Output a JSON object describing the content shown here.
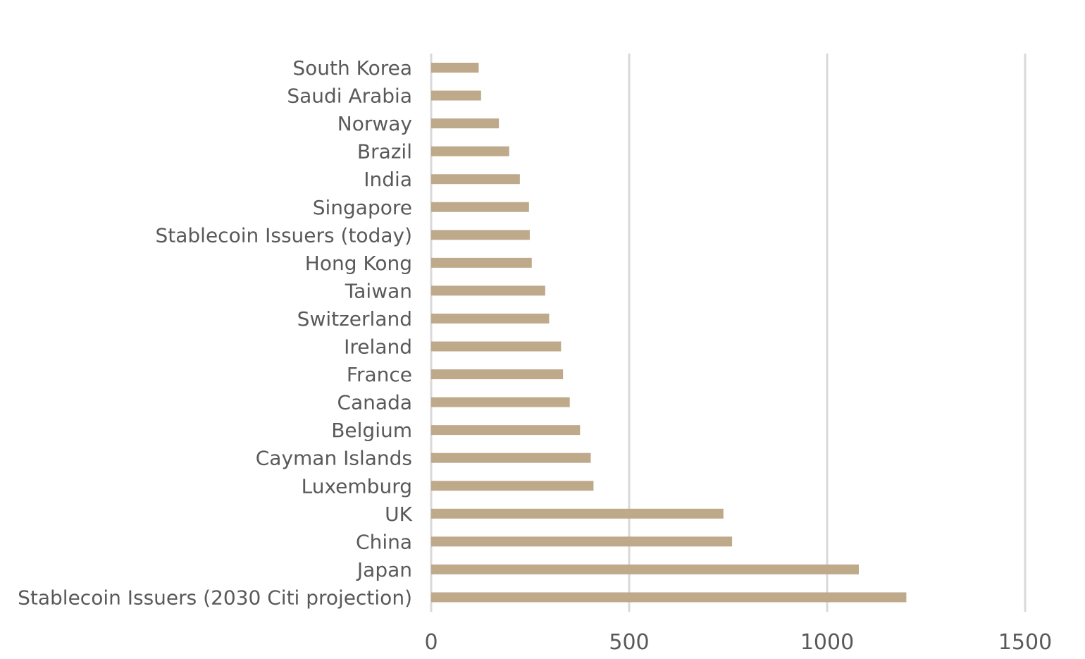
{
  "chart_data": {
    "type": "bar",
    "orientation": "horizontal",
    "title": "",
    "xlabel": "",
    "ylabel": "",
    "xlim": [
      0,
      1500
    ],
    "xticks": [
      0,
      500,
      1000,
      1500
    ],
    "xtick_labels": [
      "0",
      "500",
      "1000",
      "1500"
    ],
    "grid": true,
    "legend": "none",
    "bar_color": "#bfa98b",
    "categories": [
      "South Korea",
      "Saudi Arabia",
      "Norway",
      "Brazil",
      "India",
      "Singapore",
      "Stablecoin Issuers (today)",
      "Hong Kong",
      "Taiwan",
      "Switzerland",
      "Ireland",
      "France",
      "Canada",
      "Belgium",
      "Cayman Islands",
      "Luxemburg",
      "UK",
      "China",
      "Japan",
      "Stablecoin Issuers (2030 Citi projection)"
    ],
    "values": [
      120,
      126,
      171,
      197,
      224,
      247,
      249,
      254,
      288,
      298,
      328,
      333,
      350,
      376,
      403,
      410,
      738,
      760,
      1080,
      1200
    ]
  }
}
